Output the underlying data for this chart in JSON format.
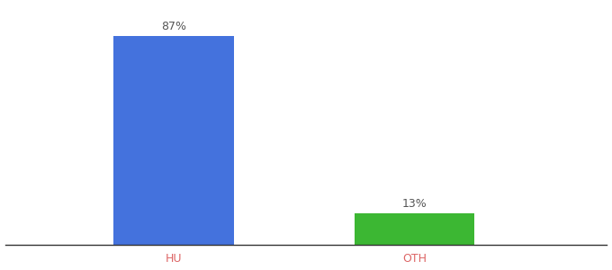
{
  "categories": [
    "HU",
    "OTH"
  ],
  "values": [
    87,
    13
  ],
  "bar_colors": [
    "#4472dd",
    "#3cb733"
  ],
  "labels": [
    "87%",
    "13%"
  ],
  "background_color": "#ffffff",
  "ylim": [
    0,
    100
  ],
  "figsize": [
    6.8,
    3.0
  ],
  "dpi": 100,
  "label_fontsize": 9,
  "tick_fontsize": 9,
  "tick_color": "#dd6666",
  "bar_width": 0.5,
  "x_positions": [
    1.0,
    2.0
  ],
  "xlim": [
    0.3,
    2.8
  ]
}
